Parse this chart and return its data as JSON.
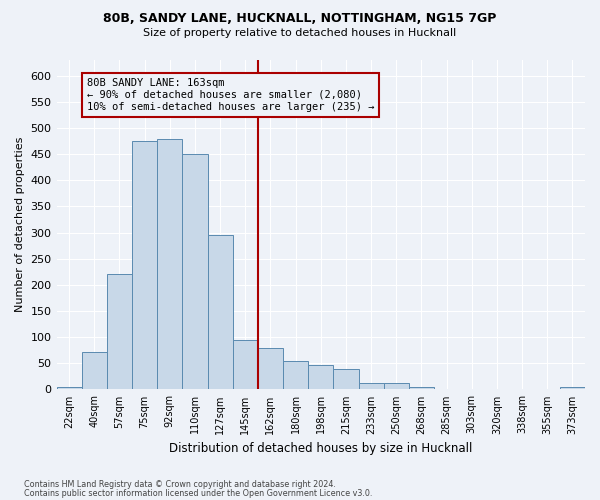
{
  "title1": "80B, SANDY LANE, HUCKNALL, NOTTINGHAM, NG15 7GP",
  "title2": "Size of property relative to detached houses in Hucknall",
  "xlabel": "Distribution of detached houses by size in Hucknall",
  "ylabel": "Number of detached properties",
  "categories": [
    "22sqm",
    "40sqm",
    "57sqm",
    "75sqm",
    "92sqm",
    "110sqm",
    "127sqm",
    "145sqm",
    "162sqm",
    "180sqm",
    "198sqm",
    "215sqm",
    "233sqm",
    "250sqm",
    "268sqm",
    "285sqm",
    "303sqm",
    "320sqm",
    "338sqm",
    "355sqm",
    "373sqm"
  ],
  "values": [
    5,
    72,
    220,
    475,
    478,
    450,
    295,
    95,
    80,
    55,
    47,
    40,
    13,
    12,
    5,
    0,
    0,
    0,
    0,
    0,
    5
  ],
  "bar_color": "#c8d8e8",
  "bar_edge_color": "#5a8ab0",
  "bg_color": "#eef2f8",
  "grid_color": "#ffffff",
  "vline_index": 8,
  "vline_color": "#aa0000",
  "annotation_text": "80B SANDY LANE: 163sqm\n← 90% of detached houses are smaller (2,080)\n10% of semi-detached houses are larger (235) →",
  "annotation_box_color": "#aa0000",
  "ylim": [
    0,
    630
  ],
  "yticks": [
    0,
    50,
    100,
    150,
    200,
    250,
    300,
    350,
    400,
    450,
    500,
    550,
    600
  ],
  "footnote1": "Contains HM Land Registry data © Crown copyright and database right 2024.",
  "footnote2": "Contains public sector information licensed under the Open Government Licence v3.0."
}
